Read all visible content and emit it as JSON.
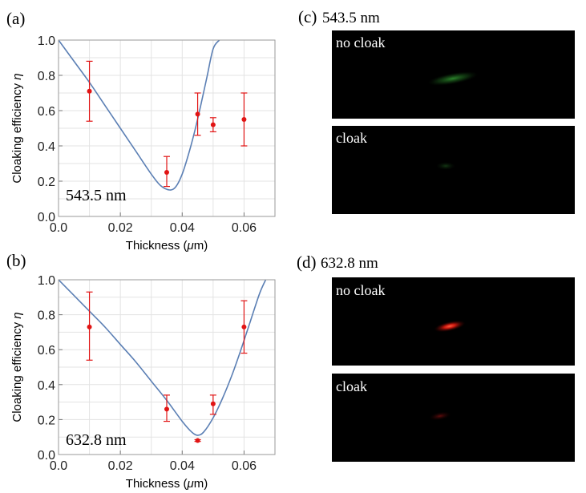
{
  "chart_data": [
    {
      "type": "scatter",
      "panel_label": "(a)",
      "annotation": "543.5 nm",
      "xlabel_prefix": "Thickness (",
      "xlabel_mu": "μ",
      "xlabel_suffix": "m)",
      "ylabel_prefix": "Cloaking efficiency ",
      "ylabel_eta": "η",
      "xlim": [
        0,
        0.07
      ],
      "ylim": [
        0,
        1.0
      ],
      "xticks": [
        "0.0",
        "0.02",
        "0.04",
        "0.06"
      ],
      "xtick_values": [
        0,
        0.02,
        0.04,
        0.06
      ],
      "yticks": [
        "0.0",
        "0.2",
        "0.4",
        "0.6",
        "0.8",
        "1.0"
      ],
      "ytick_values": [
        0,
        0.2,
        0.4,
        0.6,
        0.8,
        1.0
      ],
      "grid": true,
      "line_color": "#5b7fb4",
      "point_color": "#e11414",
      "points": [
        {
          "x": 0.01,
          "y": 0.71,
          "lo": 0.54,
          "hi": 0.88
        },
        {
          "x": 0.035,
          "y": 0.25,
          "lo": 0.17,
          "hi": 0.34
        },
        {
          "x": 0.045,
          "y": 0.58,
          "lo": 0.46,
          "hi": 0.7
        },
        {
          "x": 0.05,
          "y": 0.52,
          "lo": 0.48,
          "hi": 0.56
        },
        {
          "x": 0.06,
          "y": 0.55,
          "lo": 0.4,
          "hi": 0.7
        }
      ],
      "curve": {
        "x": [
          0.0,
          0.005,
          0.01,
          0.015,
          0.02,
          0.025,
          0.03,
          0.033,
          0.036,
          0.038,
          0.04,
          0.042,
          0.044,
          0.046,
          0.048,
          0.05,
          0.052
        ],
        "y": [
          1.0,
          0.88,
          0.76,
          0.63,
          0.5,
          0.37,
          0.24,
          0.175,
          0.15,
          0.17,
          0.24,
          0.35,
          0.48,
          0.63,
          0.79,
          0.95,
          1.0
        ]
      }
    },
    {
      "type": "scatter",
      "panel_label": "(b)",
      "annotation": "632.8 nm",
      "xlabel_prefix": "Thickness (",
      "xlabel_mu": "μ",
      "xlabel_suffix": "m)",
      "ylabel_prefix": "Cloaking efficiency ",
      "ylabel_eta": "η",
      "xlim": [
        0,
        0.07
      ],
      "ylim": [
        0,
        1.0
      ],
      "xticks": [
        "0.0",
        "0.02",
        "0.04",
        "0.06"
      ],
      "xtick_values": [
        0,
        0.02,
        0.04,
        0.06
      ],
      "yticks": [
        "0.0",
        "0.2",
        "0.4",
        "0.6",
        "0.8",
        "1.0"
      ],
      "ytick_values": [
        0,
        0.2,
        0.4,
        0.6,
        0.8,
        1.0
      ],
      "grid": true,
      "line_color": "#5b7fb4",
      "point_color": "#e11414",
      "points": [
        {
          "x": 0.01,
          "y": 0.73,
          "lo": 0.54,
          "hi": 0.93
        },
        {
          "x": 0.035,
          "y": 0.26,
          "lo": 0.19,
          "hi": 0.34
        },
        {
          "x": 0.045,
          "y": 0.08,
          "lo": 0.075,
          "hi": 0.085
        },
        {
          "x": 0.05,
          "y": 0.29,
          "lo": 0.23,
          "hi": 0.34
        },
        {
          "x": 0.06,
          "y": 0.73,
          "lo": 0.58,
          "hi": 0.88
        }
      ],
      "curve": {
        "x": [
          0.0,
          0.005,
          0.01,
          0.015,
          0.02,
          0.025,
          0.03,
          0.035,
          0.04,
          0.043,
          0.045,
          0.047,
          0.05,
          0.053,
          0.056,
          0.059,
          0.062,
          0.065,
          0.067
        ],
        "y": [
          1.0,
          0.91,
          0.82,
          0.73,
          0.63,
          0.53,
          0.42,
          0.31,
          0.19,
          0.13,
          0.11,
          0.13,
          0.21,
          0.32,
          0.45,
          0.6,
          0.76,
          0.92,
          1.0
        ]
      }
    }
  ],
  "images": [
    {
      "label": "(c)",
      "title": "543.5 nm",
      "frames": [
        {
          "caption": "no cloak",
          "spot_color": "#2a8a2a",
          "intensity": 0.55
        },
        {
          "caption": "cloak",
          "spot_color": "#1e5a1e",
          "intensity": 0.25
        }
      ]
    },
    {
      "label": "(d)",
      "title": "632.8 nm",
      "frames": [
        {
          "caption": "no cloak",
          "spot_color": "#ff2a10",
          "intensity": 1.0
        },
        {
          "caption": "cloak",
          "spot_color": "#b01010",
          "intensity": 0.35
        }
      ]
    }
  ]
}
